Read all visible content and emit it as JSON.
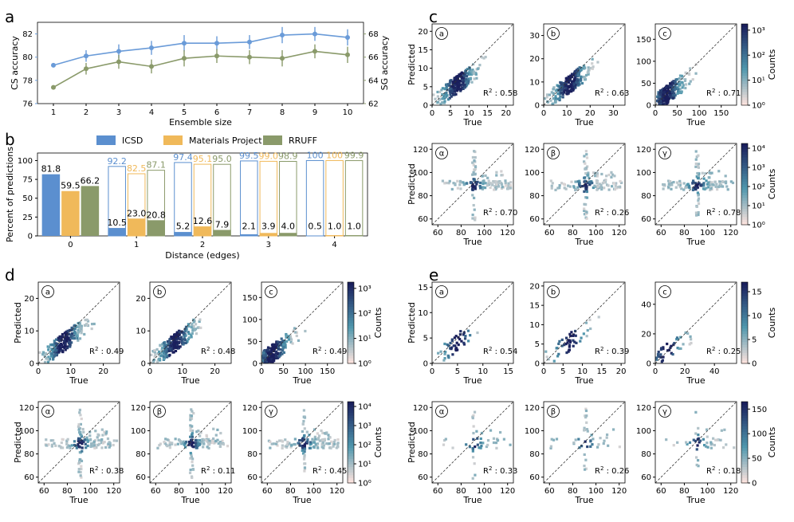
{
  "figure": {
    "panel_labels": [
      "a",
      "b",
      "c",
      "d",
      "e"
    ]
  },
  "colors": {
    "icsd": "#5b8fcf",
    "mp": "#f0b95a",
    "rruff": "#8a9a6a",
    "cs_line": "#6a9bd8",
    "sg_line": "#8a9a6a",
    "cmap_low": "#fbe3de",
    "cmap_mid": "#4f97ad",
    "cmap_high": "#1a1f5c"
  },
  "chart_data": [
    {
      "id": "a",
      "type": "line",
      "xlabel": "Ensemble size",
      "ylabel_left": "CS accuracy",
      "ylabel_right": "SG accuracy",
      "x": [
        1,
        2,
        3,
        4,
        5,
        6,
        7,
        8,
        9,
        10
      ],
      "xticks": [
        "1",
        "2",
        "3",
        "4",
        "5",
        "6",
        "7",
        "8",
        "9",
        "10"
      ],
      "ylim_left": [
        76,
        83
      ],
      "yticks_left": [
        "76",
        "78",
        "80",
        "82"
      ],
      "ylim_right": [
        62,
        69
      ],
      "yticks_right": [
        "62",
        "64",
        "66",
        "68"
      ],
      "series": [
        {
          "name": "CS accuracy",
          "axis": "left",
          "values": [
            79.3,
            80.1,
            80.5,
            80.8,
            81.2,
            81.2,
            81.3,
            81.9,
            82.0,
            81.7
          ],
          "err": [
            0.1,
            0.5,
            0.6,
            0.6,
            0.7,
            0.6,
            0.6,
            0.7,
            0.6,
            0.7
          ]
        },
        {
          "name": "SG accuracy",
          "axis": "right",
          "values": [
            63.4,
            65.0,
            65.6,
            65.2,
            65.9,
            66.1,
            66.0,
            65.9,
            66.5,
            66.2
          ],
          "err": [
            0.1,
            0.5,
            0.6,
            0.6,
            0.7,
            0.6,
            0.6,
            0.7,
            0.6,
            0.7
          ]
        }
      ]
    },
    {
      "id": "b",
      "type": "bar",
      "xlabel": "Distance (edges)",
      "ylabel": "Percent of predictions",
      "ylim": [
        0,
        110
      ],
      "yticks": [
        "0",
        "25",
        "50",
        "75",
        "100"
      ],
      "categories": [
        "0",
        "1",
        "2",
        "3",
        "4"
      ],
      "series": [
        {
          "name": "ICSD",
          "values": [
            81.8,
            10.5,
            5.2,
            2.1,
            0.5
          ],
          "cumulative": [
            "",
            "92.2",
            "97.4",
            "99.5",
            "100"
          ]
        },
        {
          "name": "Materials Project",
          "values": [
            59.5,
            23.0,
            12.6,
            3.9,
            1.0
          ],
          "cumulative": [
            "",
            "82.5",
            "95.1",
            "99.0",
            "100"
          ]
        },
        {
          "name": "RRUFF",
          "values": [
            66.2,
            20.8,
            7.9,
            4.0,
            1.0
          ],
          "cumulative": [
            "",
            "87.1",
            "95.0",
            "98.9",
            "99.9"
          ]
        }
      ],
      "value_labels": [
        [
          "81.8",
          "59.5",
          "66.2"
        ],
        [
          "10.5",
          "23.0",
          "20.8"
        ],
        [
          "5.2",
          "12.6",
          "7.9"
        ],
        [
          "2.1",
          "3.9",
          "4.0"
        ],
        [
          "0.5",
          "1.0",
          "1.0"
        ]
      ]
    },
    {
      "id": "c",
      "type": "heatmap",
      "xlabel": "True",
      "ylabel": "Predicted",
      "colorbar_label": "Counts",
      "colorbar_top": {
        "scale": "log",
        "ticks": [
          "10⁰",
          "10¹",
          "10²",
          "10³"
        ]
      },
      "colorbar_bottom": {
        "scale": "log",
        "ticks": [
          "10⁰",
          "10¹",
          "10²",
          "10³",
          "10⁴"
        ]
      },
      "subplots": [
        {
          "param": "a",
          "xlim": [
            0,
            22
          ],
          "ylim": [
            0,
            22
          ],
          "xticks": [
            "0",
            "5",
            "10",
            "15",
            "20"
          ],
          "yticks": [
            "0",
            "5",
            "10",
            "15",
            "20"
          ],
          "r2": "0.58"
        },
        {
          "param": "b",
          "xlim": [
            0,
            35
          ],
          "ylim": [
            0,
            35
          ],
          "xticks": [
            "0",
            "10",
            "20",
            "30"
          ],
          "yticks": [
            "0",
            "10",
            "20",
            "30"
          ],
          "r2": "0.63"
        },
        {
          "param": "c",
          "xlim": [
            0,
            185
          ],
          "ylim": [
            0,
            185
          ],
          "xticks": [
            "0",
            "50",
            "100",
            "150"
          ],
          "yticks": [
            "0",
            "50",
            "100",
            "150"
          ],
          "r2": "0.71"
        },
        {
          "param": "α",
          "xlim": [
            55,
            125
          ],
          "ylim": [
            55,
            125
          ],
          "xticks": [
            "60",
            "80",
            "100",
            "120"
          ],
          "yticks": [
            "60",
            "80",
            "100",
            "120"
          ],
          "r2": "0.70"
        },
        {
          "param": "β",
          "xlim": [
            55,
            125
          ],
          "ylim": [
            55,
            125
          ],
          "xticks": [
            "60",
            "80",
            "100",
            "120"
          ],
          "yticks": [
            "60",
            "80",
            "100",
            "120"
          ],
          "r2": "0.26"
        },
        {
          "param": "γ",
          "xlim": [
            55,
            125
          ],
          "ylim": [
            55,
            125
          ],
          "xticks": [
            "60",
            "80",
            "100",
            "120"
          ],
          "yticks": [
            "60",
            "80",
            "100",
            "120"
          ],
          "r2": "0.78"
        }
      ]
    },
    {
      "id": "d",
      "type": "heatmap",
      "xlabel": "True",
      "ylabel": "Predicted",
      "colorbar_label": "Counts",
      "colorbar_top": {
        "scale": "log",
        "ticks": [
          "10⁰",
          "10¹",
          "10²",
          "10³"
        ]
      },
      "colorbar_bottom": {
        "scale": "log",
        "ticks": [
          "10⁰",
          "10¹",
          "10²",
          "10³",
          "10⁴"
        ]
      },
      "subplots": [
        {
          "param": "a",
          "xlim": [
            0,
            25
          ],
          "ylim": [
            0,
            25
          ],
          "xticks": [
            "0",
            "10",
            "20"
          ],
          "yticks": [
            "0",
            "10",
            "20"
          ],
          "r2": "0.49"
        },
        {
          "param": "b",
          "xlim": [
            0,
            25
          ],
          "ylim": [
            0,
            25
          ],
          "xticks": [
            "0",
            "10",
            "20"
          ],
          "yticks": [
            "0",
            "10",
            "20"
          ],
          "r2": "0.48"
        },
        {
          "param": "c",
          "xlim": [
            0,
            185
          ],
          "ylim": [
            0,
            185
          ],
          "xticks": [
            "0",
            "50",
            "100",
            "150"
          ],
          "yticks": [
            "0",
            "50",
            "100",
            "150"
          ],
          "r2": "0.49"
        },
        {
          "param": "α",
          "xlim": [
            55,
            125
          ],
          "ylim": [
            55,
            125
          ],
          "xticks": [
            "60",
            "80",
            "100",
            "120"
          ],
          "yticks": [
            "60",
            "80",
            "100",
            "120"
          ],
          "r2": "0.38"
        },
        {
          "param": "β",
          "xlim": [
            55,
            125
          ],
          "ylim": [
            55,
            125
          ],
          "xticks": [
            "60",
            "80",
            "100",
            "120"
          ],
          "yticks": [
            "60",
            "80",
            "100",
            "120"
          ],
          "r2": "0.11"
        },
        {
          "param": "γ",
          "xlim": [
            55,
            125
          ],
          "ylim": [
            55,
            125
          ],
          "xticks": [
            "60",
            "80",
            "100",
            "120"
          ],
          "yticks": [
            "60",
            "80",
            "100",
            "120"
          ],
          "r2": "0.45"
        }
      ]
    },
    {
      "id": "e",
      "type": "heatmap",
      "xlabel": "True",
      "ylabel": "Predicted",
      "colorbar_label": "Counts",
      "colorbar_top": {
        "scale": "linear",
        "max": 17,
        "ticks": [
          "0",
          "5",
          "10",
          "15"
        ]
      },
      "colorbar_bottom": {
        "scale": "linear",
        "max": 165,
        "ticks": [
          "0",
          "50",
          "100",
          "150"
        ]
      },
      "subplots": [
        {
          "param": "a",
          "xlim": [
            0,
            16
          ],
          "ylim": [
            0,
            16
          ],
          "xticks": [
            "0",
            "5",
            "10",
            "15"
          ],
          "yticks": [
            "0",
            "5",
            "10",
            "15"
          ],
          "r2": "0.54"
        },
        {
          "param": "b",
          "xlim": [
            0,
            21
          ],
          "ylim": [
            0,
            21
          ],
          "xticks": [
            "0",
            "5",
            "10",
            "15",
            "20"
          ],
          "yticks": [
            "0",
            "5",
            "10",
            "15",
            "20"
          ],
          "r2": "0.39"
        },
        {
          "param": "c",
          "xlim": [
            0,
            55
          ],
          "ylim": [
            0,
            55
          ],
          "xticks": [
            "0",
            "20",
            "40"
          ],
          "yticks": [
            "0",
            "20",
            "40"
          ],
          "r2": "0.25"
        },
        {
          "param": "α",
          "xlim": [
            55,
            125
          ],
          "ylim": [
            55,
            125
          ],
          "xticks": [
            "60",
            "80",
            "100",
            "120"
          ],
          "yticks": [
            "60",
            "80",
            "100",
            "120"
          ],
          "r2": "0.33"
        },
        {
          "param": "β",
          "xlim": [
            55,
            125
          ],
          "ylim": [
            55,
            125
          ],
          "xticks": [
            "60",
            "80",
            "100",
            "120"
          ],
          "yticks": [
            "60",
            "80",
            "100",
            "120"
          ],
          "r2": "0.26"
        },
        {
          "param": "γ",
          "xlim": [
            55,
            125
          ],
          "ylim": [
            55,
            125
          ],
          "xticks": [
            "60",
            "80",
            "100",
            "120"
          ],
          "yticks": [
            "60",
            "80",
            "100",
            "120"
          ],
          "r2": "0.18"
        }
      ]
    }
  ]
}
